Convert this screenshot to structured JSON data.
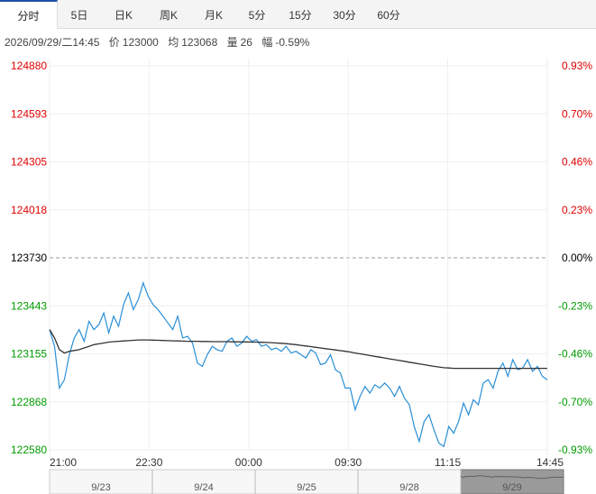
{
  "tabs": [
    {
      "label": "分时",
      "active": true
    },
    {
      "label": "5日"
    },
    {
      "label": "日K"
    },
    {
      "label": "周K"
    },
    {
      "label": "月K"
    },
    {
      "label": "5分"
    },
    {
      "label": "15分"
    },
    {
      "label": "30分"
    },
    {
      "label": "60分"
    }
  ],
  "info": {
    "datetime": "2026/09/29/二14:45",
    "price_label": "价",
    "price": "123000",
    "avg_label": "均",
    "avg": "123068",
    "vol_label": "量",
    "vol": "26",
    "chg_label": "幅",
    "chg": "-0.59%"
  },
  "colors": {
    "up": "#e00000",
    "down": "#009a00",
    "neutral": "#000000",
    "price_line": "#2a8fd6",
    "avg_line": "#333333"
  },
  "chart_data": {
    "type": "line",
    "prev_close": 123730,
    "ylim": [
      122580,
      124880
    ],
    "y_ticks_left": [
      "124880",
      "124593",
      "124305",
      "124018",
      "123730",
      "123443",
      "123155",
      "122868",
      "122580"
    ],
    "y_ticks_right": [
      "0.93%",
      "0.70%",
      "0.46%",
      "0.23%",
      "0.00%",
      "-0.23%",
      "-0.46%",
      "-0.70%",
      "-0.93%"
    ],
    "x_ticks": [
      "21:00",
      "22:30",
      "00:00",
      "09:30",
      "11:15",
      "14:45"
    ],
    "series": [
      {
        "values": [
          123300,
          123200,
          122950,
          123000,
          123150,
          123250,
          123300,
          123230,
          123350,
          123300,
          123330,
          123400,
          123280,
          123380,
          123320,
          123450,
          123520,
          123420,
          123480,
          123580,
          123500,
          123450,
          123420,
          123380,
          123340,
          123300,
          123380,
          123250,
          123260,
          123220,
          123100,
          123080,
          123150,
          123200,
          123180,
          123170,
          123230,
          123250,
          123200,
          123220,
          123260,
          123230,
          123240,
          123200,
          123210,
          123180,
          123190,
          123170,
          123200,
          123160,
          123170,
          123150,
          123130,
          123180,
          123160,
          123090,
          123100,
          123150,
          123060,
          123040,
          122950,
          122950,
          122820,
          122900,
          122960,
          122920,
          122970,
          122950,
          122980,
          122950,
          122900,
          122960,
          122890,
          122850,
          122720,
          122630,
          122750,
          122790,
          122700,
          122620,
          122600,
          122720,
          122680,
          122750,
          122860,
          122790,
          122880,
          122850,
          122980,
          123000,
          122950,
          123050,
          123100,
          123020,
          123120,
          123060,
          123070,
          123120,
          123050,
          123080,
          123020,
          123000
        ]
      },
      {
        "values": [
          123300,
          123250,
          123180,
          123160,
          123170,
          123175,
          123180,
          123190,
          123200,
          123210,
          123215,
          123220,
          123225,
          123228,
          123230,
          123232,
          123234,
          123236,
          123238,
          123238,
          123238,
          123237,
          123236,
          123235,
          123234,
          123233,
          123232,
          123231,
          123230,
          123230,
          123230,
          123229,
          123229,
          123228,
          123228,
          123228,
          123228,
          123227,
          123227,
          123226,
          123226,
          123225,
          123225,
          123224,
          123223,
          123222,
          123220,
          123218,
          123216,
          123213,
          123210,
          123206,
          123202,
          123198,
          123194,
          123190,
          123186,
          123182,
          123178,
          123174,
          123170,
          123166,
          123160,
          123155,
          123150,
          123145,
          123140,
          123135,
          123130,
          123125,
          123120,
          123115,
          123110,
          123105,
          123100,
          123095,
          123090,
          123085,
          123080,
          123076,
          123072,
          123070,
          123068,
          123068,
          123068,
          123068,
          123068,
          123068,
          123068,
          123068,
          123068,
          123068,
          123068,
          123068,
          123068,
          123068,
          123068,
          123068,
          123068,
          123068,
          123068,
          123068
        ]
      }
    ],
    "navigator": {
      "days": [
        "9/23",
        "9/24",
        "9/25",
        "9/28",
        "9/29"
      ]
    }
  }
}
